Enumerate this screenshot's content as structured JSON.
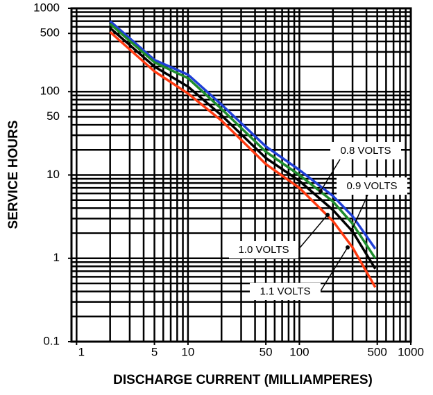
{
  "chart_data": {
    "type": "line",
    "x_label": "DISCHARGE CURRENT (MILLIAMPERES)",
    "y_label": "SERVICE HOURS",
    "x": [
      2,
      5,
      10,
      20,
      50,
      100,
      200,
      300,
      480
    ],
    "series": [
      {
        "name": "0.8 VOLTS",
        "color": "#1f3fd6",
        "values": [
          700,
          240,
          160,
          70,
          22,
          11.5,
          5.6,
          3.2,
          1.3
        ]
      },
      {
        "name": "0.9 VOLTS",
        "color": "#1e8c2c",
        "values": [
          650,
          225,
          145,
          62,
          19,
          10,
          4.8,
          2.6,
          1.0
        ]
      },
      {
        "name": "1.0 VOLTS",
        "color": "#000000",
        "values": [
          580,
          200,
          115,
          52,
          16,
          8.5,
          3.8,
          2.1,
          0.75
        ]
      },
      {
        "name": "1.1 VOLTS",
        "color": "#ff3a10",
        "values": [
          520,
          175,
          95,
          45,
          13.5,
          7,
          2.8,
          1.35,
          0.45
        ]
      }
    ],
    "x_log": true,
    "y_log": true,
    "xlim": [
      0.9,
      1000
    ],
    "ylim": [
      0.1,
      1000
    ],
    "xticks": [
      1,
      5,
      10,
      50,
      100,
      500,
      1000
    ],
    "yticks": [
      0.1,
      1,
      10,
      50,
      100,
      500,
      1000
    ],
    "xgrid": [
      1,
      2,
      3,
      4,
      5,
      6,
      7,
      8,
      9,
      10,
      20,
      30,
      40,
      50,
      60,
      70,
      80,
      90,
      100,
      200,
      300,
      400,
      500,
      600,
      700,
      800,
      900,
      1000
    ],
    "ygrid": [
      0.1,
      0.2,
      0.3,
      0.4,
      0.5,
      0.6,
      0.7,
      0.8,
      0.9,
      1,
      2,
      3,
      4,
      5,
      6,
      7,
      8,
      9,
      10,
      20,
      30,
      40,
      50,
      60,
      70,
      80,
      90,
      100,
      200,
      300,
      400,
      500,
      600,
      700,
      800,
      900,
      1000
    ],
    "grid": true
  }
}
